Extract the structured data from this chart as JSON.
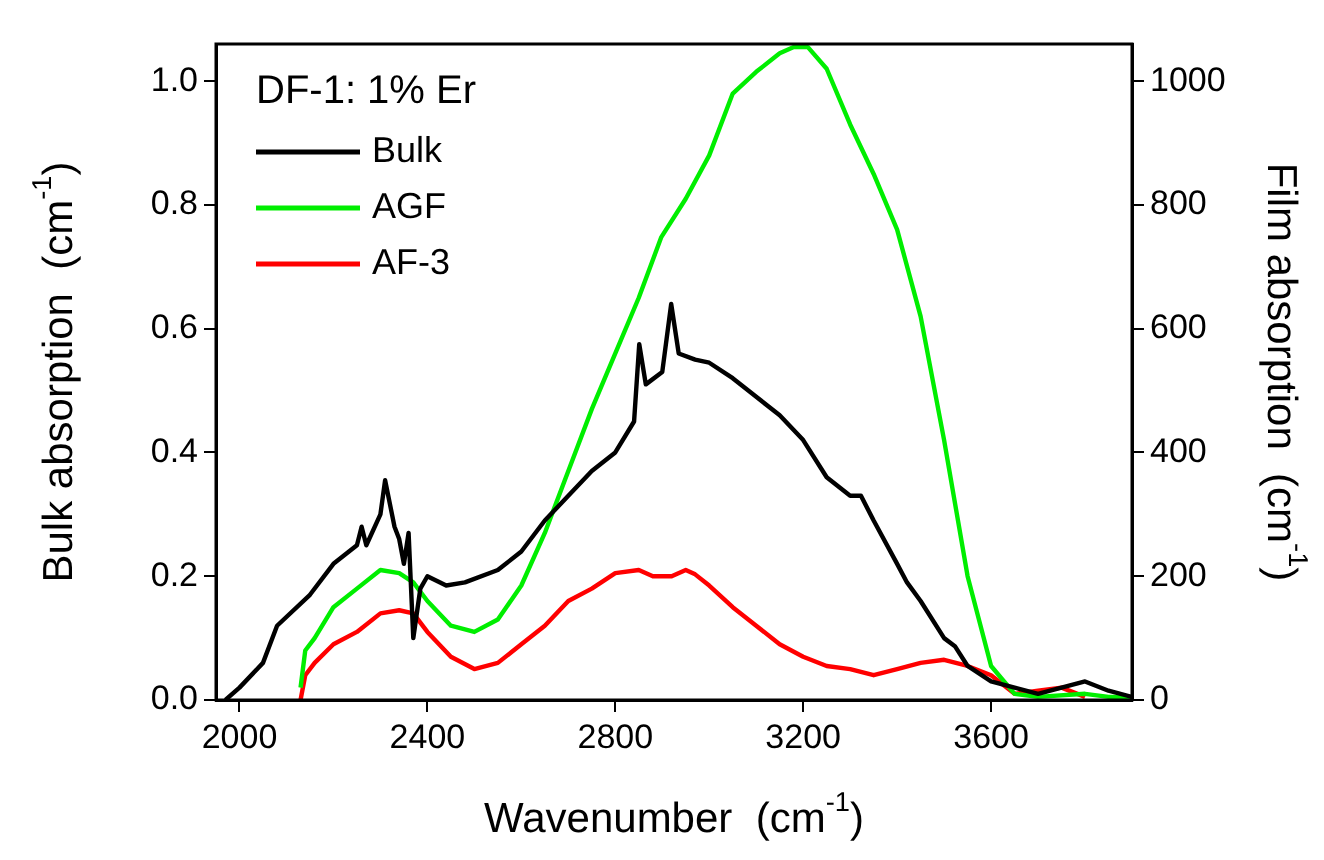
{
  "chart_data": {
    "type": "line",
    "xlabel": "Wavenumber  (cm$^{-1}$)",
    "ylabel": "Bulk absorption  (cm$^{-1}$)",
    "y2label": "Film absorption  (cm$^{-1}$)",
    "legend_title": "DF-1: 1% Er",
    "legend": "top left",
    "grid": false,
    "marker": "none",
    "line_style": "solid",
    "xlim": [
      1950,
      3900
    ],
    "xticks": [
      2000,
      2400,
      2800,
      3200,
      3600
    ],
    "ylim": [
      0,
      1.06
    ],
    "yticks": [
      {
        "value": 0,
        "label": "0.0"
      },
      0.2,
      0.4,
      0.6,
      0.8,
      {
        "value": 1,
        "label": "1.0"
      }
    ],
    "y2lim": [
      0,
      1060
    ],
    "y2ticks": [
      0,
      200,
      400,
      600,
      800,
      1000
    ],
    "series": [
      {
        "name": "Bulk",
        "color": "#000000",
        "x": [
          1970,
          2000,
          2050,
          2080,
          2150,
          2200,
          2250,
          2260,
          2270,
          2300,
          2310,
          2330,
          2340,
          2350,
          2360,
          2370,
          2385,
          2400,
          2440,
          2480,
          2550,
          2600,
          2650,
          2700,
          2750,
          2800,
          2840,
          2851,
          2865,
          2900,
          2919,
          2935,
          2970,
          3000,
          3050,
          3100,
          3150,
          3200,
          3250,
          3300,
          3323,
          3350,
          3400,
          3421,
          3450,
          3500,
          3523,
          3550,
          3600,
          3650,
          3700,
          3750,
          3800,
          3850,
          3900
        ],
        "values": [
          0,
          0.02,
          0.06,
          0.12,
          0.17,
          0.22,
          0.25,
          0.28,
          0.25,
          0.3,
          0.355,
          0.28,
          0.26,
          0.22,
          0.27,
          0.1,
          0.18,
          0.2,
          0.185,
          0.19,
          0.21,
          0.24,
          0.29,
          0.33,
          0.37,
          0.4,
          0.45,
          0.575,
          0.51,
          0.53,
          0.64,
          0.56,
          0.55,
          0.545,
          0.52,
          0.49,
          0.46,
          0.42,
          0.36,
          0.33,
          0.33,
          0.29,
          0.22,
          0.19,
          0.16,
          0.1,
          0.087,
          0.055,
          0.03,
          0.02,
          0.01,
          0.02,
          0.03,
          0.015,
          0.005
        ]
      },
      {
        "name": "AGF",
        "color": "#00ee00",
        "axis": "y2",
        "x": [
          2130,
          2140,
          2160,
          2200,
          2250,
          2300,
          2340,
          2370,
          2400,
          2450,
          2500,
          2550,
          2600,
          2650,
          2700,
          2750,
          2800,
          2850,
          2898,
          2950,
          3000,
          3050,
          3100,
          3150,
          3180,
          3210,
          3250,
          3300,
          3350,
          3400,
          3450,
          3500,
          3550,
          3600,
          3650,
          3700,
          3800,
          3850,
          3900
        ],
        "values": [
          20,
          80,
          100,
          150,
          180,
          210,
          205,
          190,
          160,
          120,
          110,
          130,
          185,
          270,
          370,
          470,
          560,
          650,
          748,
          810,
          880,
          980,
          1015,
          1045,
          1055,
          1055,
          1020,
          930,
          850,
          760,
          620,
          420,
          200,
          55,
          10,
          5,
          10,
          5,
          5
        ]
      },
      {
        "name": "AF-3",
        "color": "#ff0000",
        "axis": "y2",
        "x": [
          2130,
          2140,
          2160,
          2200,
          2250,
          2300,
          2340,
          2370,
          2400,
          2450,
          2500,
          2550,
          2600,
          2650,
          2700,
          2750,
          2800,
          2850,
          2880,
          2920,
          2950,
          2970,
          3000,
          3050,
          3100,
          3150,
          3200,
          3250,
          3300,
          3350,
          3400,
          3450,
          3500,
          3550,
          3600,
          3650,
          3700,
          3750,
          3800
        ],
        "values": [
          0,
          40,
          60,
          90,
          110,
          140,
          145,
          140,
          110,
          70,
          50,
          60,
          90,
          120,
          160,
          180,
          205,
          210,
          200,
          200,
          210,
          203,
          185,
          150,
          120,
          90,
          70,
          55,
          50,
          40,
          50,
          60,
          65,
          55,
          40,
          10,
          15,
          20,
          5
        ]
      }
    ]
  }
}
